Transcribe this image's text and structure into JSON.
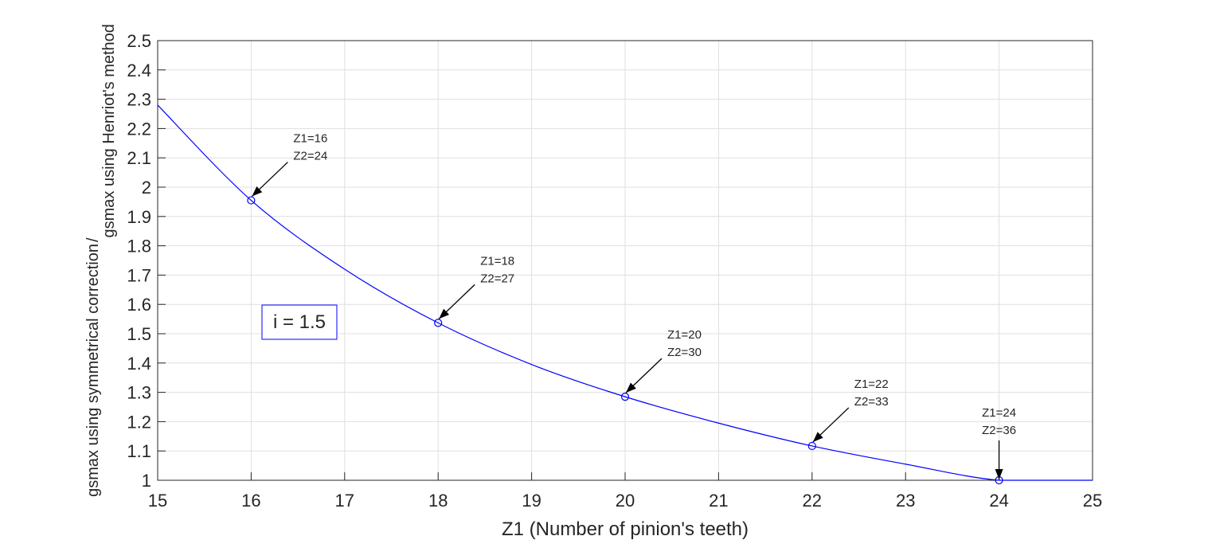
{
  "chart_data": {
    "type": "line",
    "title": "",
    "xlabel": "Z1 (Number of pinion's teeth)",
    "ylabel": "gsmax using symmetrical correction/gsmax using Henriot's method",
    "ylabel_part1": "gsmax using symmetrical correction",
    "ylabel_part2": "gsmax using Henriot's method",
    "xlim": [
      15,
      25
    ],
    "ylim": [
      1,
      2.5
    ],
    "grid": true,
    "x_ticks": [
      15,
      16,
      17,
      18,
      19,
      20,
      21,
      22,
      23,
      24,
      25
    ],
    "y_ticks": [
      1,
      1.1,
      1.2,
      1.3,
      1.4,
      1.5,
      1.6,
      1.7,
      1.8,
      1.9,
      2,
      2.1,
      2.2,
      2.3,
      2.4,
      2.5
    ],
    "x_tick_labels": [
      "15",
      "16",
      "17",
      "18",
      "19",
      "20",
      "21",
      "22",
      "23",
      "24",
      "25"
    ],
    "y_tick_labels": [
      "1",
      "1.1",
      "1.2",
      "1.3",
      "1.4",
      "1.5",
      "1.6",
      "1.7",
      "1.8",
      "1.9",
      "2",
      "2.1",
      "2.2",
      "2.3",
      "2.4",
      "2.5"
    ],
    "series": [
      {
        "color": "#0000ff",
        "x": [
          15,
          16,
          17,
          18,
          19,
          20,
          21,
          22,
          23,
          24,
          25
        ],
        "y": [
          2.28,
          1.955,
          1.72,
          1.537,
          1.395,
          1.285,
          1.195,
          1.117,
          1.055,
          1.0,
          1.0
        ]
      }
    ],
    "markers": [
      {
        "x": 16,
        "y": 1.955
      },
      {
        "x": 18,
        "y": 1.537
      },
      {
        "x": 20,
        "y": 1.285
      },
      {
        "x": 22,
        "y": 1.117
      },
      {
        "x": 24,
        "y": 1.0
      }
    ],
    "annotations": [
      {
        "line1": "Z1=16",
        "line2": "Z2=24",
        "x": 16,
        "y": 1.955
      },
      {
        "line1": "Z1=18",
        "line2": "Z2=27",
        "x": 18,
        "y": 1.537
      },
      {
        "line1": "Z1=20",
        "line2": "Z2=30",
        "x": 20,
        "y": 1.285
      },
      {
        "line1": "Z1=22",
        "line2": "Z2=33",
        "x": 22,
        "y": 1.117
      },
      {
        "line1": "Z1=24",
        "line2": "Z2=36",
        "x": 24,
        "y": 1.0
      }
    ],
    "textbox": "i = 1.5",
    "textbox_color": "#0000ff"
  }
}
